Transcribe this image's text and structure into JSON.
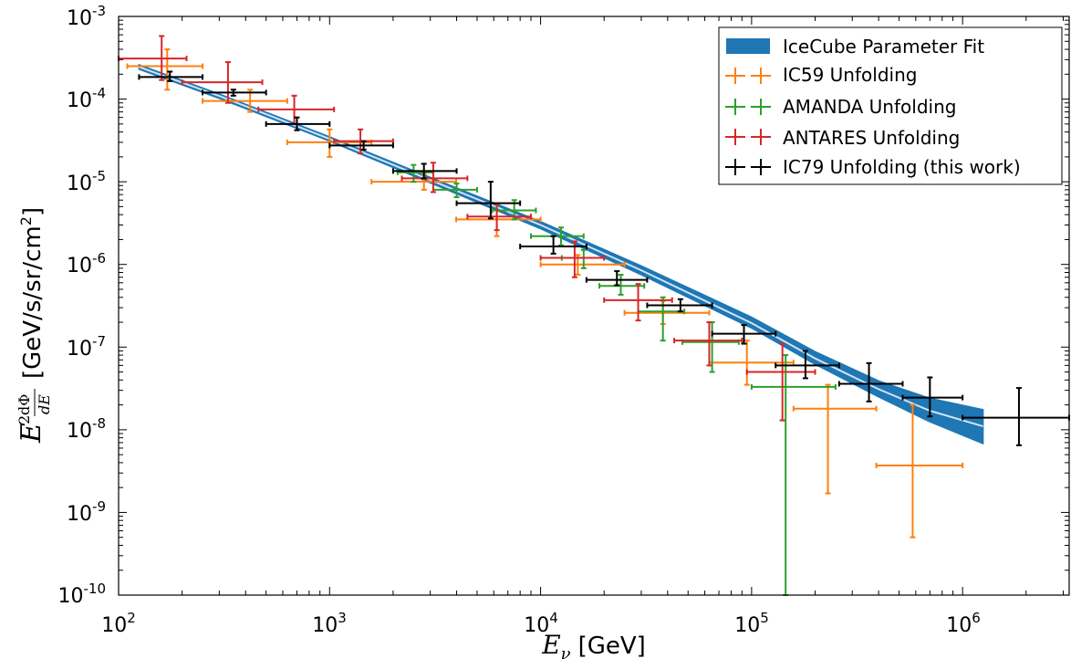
{
  "chart_data": {
    "type": "scatter",
    "xscale": "log",
    "yscale": "log",
    "xlim": [
      100,
      3200000
    ],
    "ylim": [
      1e-10,
      0.001
    ],
    "grid": false,
    "legend_position": "top-right",
    "xlabel": {
      "symbol": "E",
      "sub": "ν",
      "unit": "[GeV]"
    },
    "ylabel": {
      "symbol": "E",
      "sup": "2",
      "frac_num": "dΦ",
      "frac_den": "dE",
      "unit_pre": "[GeV/s/sr/cm",
      "unit_sup": "2",
      "unit_post": "]"
    },
    "xticks": [
      {
        "value": 100,
        "base": "10",
        "exp": "2"
      },
      {
        "value": 1000,
        "base": "10",
        "exp": "3"
      },
      {
        "value": 10000,
        "base": "10",
        "exp": "4"
      },
      {
        "value": 100000,
        "base": "10",
        "exp": "5"
      },
      {
        "value": 1000000,
        "base": "10",
        "exp": "6"
      }
    ],
    "yticks": [
      {
        "value": 1e-10,
        "base": "10",
        "exp": "-10"
      },
      {
        "value": 1e-09,
        "base": "10",
        "exp": "-9"
      },
      {
        "value": 1e-08,
        "base": "10",
        "exp": "-8"
      },
      {
        "value": 1e-07,
        "base": "10",
        "exp": "-7"
      },
      {
        "value": 1e-06,
        "base": "10",
        "exp": "-6"
      },
      {
        "value": 1e-05,
        "base": "10",
        "exp": "-5"
      },
      {
        "value": 0.0001,
        "base": "10",
        "exp": "-4"
      },
      {
        "value": 0.001,
        "base": "10",
        "exp": "-3"
      }
    ],
    "fit_band": {
      "name": "IceCube Parameter Fit",
      "color": "#1f77b4",
      "center_color": "#cfe3f5",
      "points": [
        {
          "x": 125,
          "lo": 0.00023,
          "center": 0.000245,
          "hi": 0.00026
        },
        {
          "x": 300,
          "lo": 0.000102,
          "center": 0.000109,
          "hi": 0.000115
        },
        {
          "x": 1000,
          "lo": 3.1e-05,
          "center": 3.3e-05,
          "hi": 3.5e-05
        },
        {
          "x": 3000,
          "lo": 9.7e-06,
          "center": 1.05e-05,
          "hi": 1.13e-05
        },
        {
          "x": 10000,
          "lo": 2.7e-06,
          "center": 3e-06,
          "hi": 3.3e-06
        },
        {
          "x": 30000,
          "lo": 7.5e-07,
          "center": 8.5e-07,
          "hi": 9.6e-07
        },
        {
          "x": 100000,
          "lo": 1.7e-07,
          "center": 1.95e-07,
          "hi": 2.3e-07
        },
        {
          "x": 200000,
          "lo": 6.2e-08,
          "center": 7.3e-08,
          "hi": 8.8e-08
        },
        {
          "x": 400000,
          "lo": 2.5e-08,
          "center": 3.1e-08,
          "hi": 3.9e-08
        },
        {
          "x": 700000,
          "lo": 1.25e-08,
          "center": 1.7e-08,
          "hi": 2.4e-08
        },
        {
          "x": 1250000,
          "lo": 6.8e-09,
          "center": 1.1e-08,
          "hi": 1.75e-08
        }
      ]
    },
    "series": [
      {
        "name": "IC59 Unfolding",
        "color": "#ff7f0e",
        "points": [
          {
            "x": 170,
            "y": 0.00025,
            "xlo": 110,
            "xhi": 250,
            "ylo": 0.00013,
            "yhi": 0.0004
          },
          {
            "x": 420,
            "y": 9.5e-05,
            "xlo": 250,
            "xhi": 630,
            "ylo": 7e-05,
            "yhi": 0.00013
          },
          {
            "x": 1000,
            "y": 3e-05,
            "xlo": 630,
            "xhi": 1580,
            "ylo": 2e-05,
            "yhi": 4.3e-05
          },
          {
            "x": 2800,
            "y": 1e-05,
            "xlo": 1580,
            "xhi": 3980,
            "ylo": 8e-06,
            "yhi": 1.25e-05
          },
          {
            "x": 6200,
            "y": 3.5e-06,
            "xlo": 3980,
            "xhi": 10000,
            "ylo": 2.2e-06,
            "yhi": 5.5e-06
          },
          {
            "x": 15000,
            "y": 1e-06,
            "xlo": 10000,
            "xhi": 25000,
            "ylo": 7.5e-07,
            "yhi": 1.3e-06
          },
          {
            "x": 38000,
            "y": 2.6e-07,
            "xlo": 25000,
            "xhi": 63000,
            "ylo": 1.9e-07,
            "yhi": 3.6e-07
          },
          {
            "x": 95000,
            "y": 6.5e-08,
            "xlo": 63000,
            "xhi": 158000,
            "ylo": 3.5e-08,
            "yhi": 1.2e-07
          },
          {
            "x": 230000,
            "y": 1.8e-08,
            "xlo": 158000,
            "xhi": 390000,
            "ylo": 1.7e-09,
            "yhi": 3.5e-08
          },
          {
            "x": 580000,
            "y": 3.7e-09,
            "xlo": 390000,
            "xhi": 1000000,
            "ylo": 5e-10,
            "yhi": 2e-08
          }
        ]
      },
      {
        "name": "AMANDA Unfolding",
        "color": "#2ca02c",
        "points": [
          {
            "x": 2500,
            "y": 1.3e-05,
            "xlo": 2100,
            "xhi": 3100,
            "ylo": 1e-05,
            "yhi": 1.6e-05
          },
          {
            "x": 4000,
            "y": 8e-06,
            "xlo": 3100,
            "xhi": 5000,
            "ylo": 6.5e-06,
            "yhi": 9.5e-06
          },
          {
            "x": 7500,
            "y": 4.5e-06,
            "xlo": 5900,
            "xhi": 9500,
            "ylo": 3.5e-06,
            "yhi": 6e-06
          },
          {
            "x": 12500,
            "y": 2.2e-06,
            "xlo": 9000,
            "xhi": 16000,
            "ylo": 1.7e-06,
            "yhi": 2.8e-06
          },
          {
            "x": 16000,
            "y": 1.2e-06,
            "xlo": 12600,
            "xhi": 20000,
            "ylo": 9e-07,
            "yhi": 1.5e-06
          },
          {
            "x": 24000,
            "y": 5.5e-07,
            "xlo": 19000,
            "xhi": 31000,
            "ylo": 4.3e-07,
            "yhi": 7.5e-07
          },
          {
            "x": 38000,
            "y": 2.7e-07,
            "xlo": 29000,
            "xhi": 48000,
            "ylo": 1.2e-07,
            "yhi": 4e-07
          },
          {
            "x": 65000,
            "y": 1.15e-07,
            "xlo": 47000,
            "xhi": 87000,
            "ylo": 5e-08,
            "yhi": 2e-07
          },
          {
            "x": 145000,
            "y": 3.3e-08,
            "xlo": 100000,
            "xhi": 250000,
            "ylo": 1e-10,
            "yhi": 8e-08
          }
        ]
      },
      {
        "name": "ANTARES Unfolding",
        "color": "#d62728",
        "points": [
          {
            "x": 160,
            "y": 0.00031,
            "xlo": 100,
            "xhi": 210,
            "ylo": 0.00017,
            "yhi": 0.00058
          },
          {
            "x": 330,
            "y": 0.00016,
            "xlo": 200,
            "xhi": 480,
            "ylo": 9e-05,
            "yhi": 0.00028
          },
          {
            "x": 680,
            "y": 7.5e-05,
            "xlo": 460,
            "xhi": 1050,
            "ylo": 5e-05,
            "yhi": 0.00011
          },
          {
            "x": 1400,
            "y": 3.1e-05,
            "xlo": 1050,
            "xhi": 2000,
            "ylo": 2.2e-05,
            "yhi": 4.3e-05
          },
          {
            "x": 3100,
            "y": 1.1e-05,
            "xlo": 2200,
            "xhi": 4500,
            "ylo": 7.5e-06,
            "yhi": 1.7e-05
          },
          {
            "x": 6200,
            "y": 3.8e-06,
            "xlo": 4500,
            "xhi": 9000,
            "ylo": 2.6e-06,
            "yhi": 5.3e-06
          },
          {
            "x": 14500,
            "y": 1.2e-06,
            "xlo": 10000,
            "xhi": 20000,
            "ylo": 7e-07,
            "yhi": 1.9e-06
          },
          {
            "x": 29000,
            "y": 3.7e-07,
            "xlo": 20000,
            "xhi": 42000,
            "ylo": 2.1e-07,
            "yhi": 5.8e-07
          },
          {
            "x": 63000,
            "y": 1.2e-07,
            "xlo": 43000,
            "xhi": 90000,
            "ylo": 6e-08,
            "yhi": 2e-07
          },
          {
            "x": 140000,
            "y": 5e-08,
            "xlo": 95000,
            "xhi": 200000,
            "ylo": 1.3e-08,
            "yhi": 1.1e-07
          }
        ]
      },
      {
        "name": "IC79 Unfolding (this work)",
        "color": "#000000",
        "points": [
          {
            "x": 175,
            "y": 0.000185,
            "xlo": 125,
            "xhi": 250,
            "ylo": 0.000165,
            "yhi": 0.000215
          },
          {
            "x": 350,
            "y": 0.00012,
            "xlo": 250,
            "xhi": 500,
            "ylo": 0.00011,
            "yhi": 0.00013
          },
          {
            "x": 700,
            "y": 5e-05,
            "xlo": 500,
            "xhi": 1000,
            "ylo": 4.2e-05,
            "yhi": 6e-05
          },
          {
            "x": 1450,
            "y": 2.75e-05,
            "xlo": 1000,
            "xhi": 2000,
            "ylo": 2.45e-05,
            "yhi": 3.1e-05
          },
          {
            "x": 2800,
            "y": 1.35e-05,
            "xlo": 2000,
            "xhi": 4000,
            "ylo": 1.1e-05,
            "yhi": 1.65e-05
          },
          {
            "x": 5800,
            "y": 5.5e-06,
            "xlo": 4000,
            "xhi": 8000,
            "ylo": 3.6e-06,
            "yhi": 1e-05
          },
          {
            "x": 11500,
            "y": 1.65e-06,
            "xlo": 8000,
            "xhi": 16500,
            "ylo": 1.35e-06,
            "yhi": 2.2e-06
          },
          {
            "x": 23000,
            "y": 6.5e-07,
            "xlo": 16500,
            "xhi": 32000,
            "ylo": 5.6e-07,
            "yhi": 8.3e-07
          },
          {
            "x": 46000,
            "y": 3.2e-07,
            "xlo": 32000,
            "xhi": 65000,
            "ylo": 2.7e-07,
            "yhi": 3.8e-07
          },
          {
            "x": 92000,
            "y": 1.45e-07,
            "xlo": 65000,
            "xhi": 130000,
            "ylo": 1.1e-07,
            "yhi": 1.85e-07
          },
          {
            "x": 180000,
            "y": 6e-08,
            "xlo": 130000,
            "xhi": 260000,
            "ylo": 4.2e-08,
            "yhi": 9e-08
          },
          {
            "x": 360000,
            "y": 3.6e-08,
            "xlo": 260000,
            "xhi": 520000,
            "ylo": 2.2e-08,
            "yhi": 6.4e-08
          },
          {
            "x": 700000,
            "y": 2.45e-08,
            "xlo": 520000,
            "xhi": 1000000,
            "ylo": 1.45e-08,
            "yhi": 4.3e-08
          },
          {
            "x": 1850000,
            "y": 1.4e-08,
            "xlo": 1000000,
            "xhi": 3200000,
            "ylo": 6.5e-09,
            "yhi": 3.2e-08
          }
        ]
      }
    ]
  }
}
